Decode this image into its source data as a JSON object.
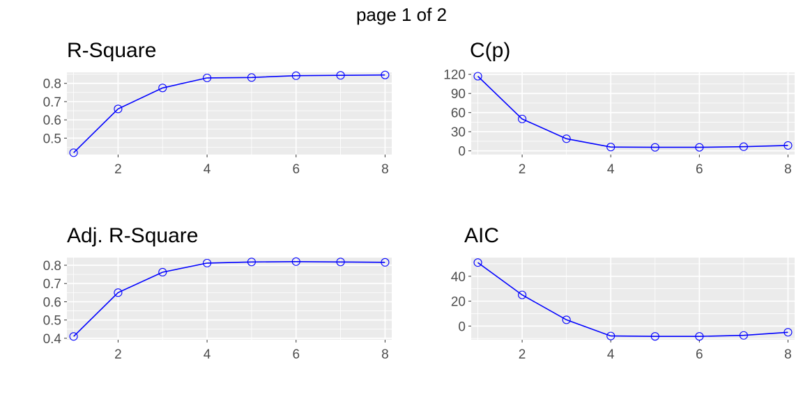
{
  "page_title": "page 1 of 2",
  "colors": {
    "series": "#0000ff",
    "panel_bg": "#ebebeb",
    "grid": "#ffffff",
    "tick_text": "#4d4d4d"
  },
  "chart_data": [
    {
      "type": "line",
      "title": "R-Square",
      "x": [
        1,
        2,
        3,
        4,
        5,
        6,
        7,
        8
      ],
      "values": [
        0.42,
        0.66,
        0.775,
        0.83,
        0.832,
        0.842,
        0.844,
        0.846
      ],
      "xlim": [
        0.85,
        8.15
      ],
      "ylim": [
        0.41,
        0.86
      ],
      "xticks": [
        2,
        4,
        6,
        8
      ],
      "xtick_labels": [
        "2",
        "4",
        "6",
        "8"
      ],
      "yticks": [
        0.5,
        0.6,
        0.7,
        0.8
      ],
      "ytick_labels": [
        "0.5",
        "0.6",
        "0.7",
        "0.8"
      ],
      "grid": true
    },
    {
      "type": "line",
      "title": "C(p)",
      "x": [
        1,
        2,
        3,
        4,
        5,
        6,
        7,
        8
      ],
      "values": [
        117,
        50,
        19,
        6,
        5.5,
        5.5,
        6.5,
        8.5
      ],
      "xlim": [
        0.85,
        8.15
      ],
      "ylim": [
        -5.8,
        123
      ],
      "xticks": [
        2,
        4,
        6,
        8
      ],
      "xtick_labels": [
        "2",
        "4",
        "6",
        "8"
      ],
      "yticks": [
        0,
        30,
        60,
        90,
        120
      ],
      "ytick_labels": [
        "0",
        "30",
        "60",
        "90",
        "120"
      ],
      "grid": true
    },
    {
      "type": "line",
      "title": "Adj. R-Square",
      "x": [
        1,
        2,
        3,
        4,
        5,
        6,
        7,
        8
      ],
      "values": [
        0.41,
        0.65,
        0.762,
        0.812,
        0.818,
        0.82,
        0.818,
        0.816
      ],
      "xlim": [
        0.85,
        8.15
      ],
      "ylim": [
        0.392,
        0.842
      ],
      "xticks": [
        2,
        4,
        6,
        8
      ],
      "xtick_labels": [
        "2",
        "4",
        "6",
        "8"
      ],
      "yticks": [
        0.4,
        0.5,
        0.6,
        0.7,
        0.8
      ],
      "ytick_labels": [
        "0.4",
        "0.5",
        "0.6",
        "0.7",
        "0.8"
      ],
      "grid": true
    },
    {
      "type": "line",
      "title": "AIC",
      "x": [
        1,
        2,
        3,
        4,
        5,
        6,
        7,
        8
      ],
      "values": [
        51,
        25,
        5,
        -8,
        -8.3,
        -8.3,
        -7.5,
        -5
      ],
      "xlim": [
        0.85,
        8.15
      ],
      "ylim": [
        -11,
        55
      ],
      "xticks": [
        2,
        4,
        6,
        8
      ],
      "xtick_labels": [
        "2",
        "4",
        "6",
        "8"
      ],
      "yticks": [
        0,
        20,
        40
      ],
      "ytick_labels": [
        "0",
        "20",
        "40"
      ],
      "grid": true
    }
  ]
}
